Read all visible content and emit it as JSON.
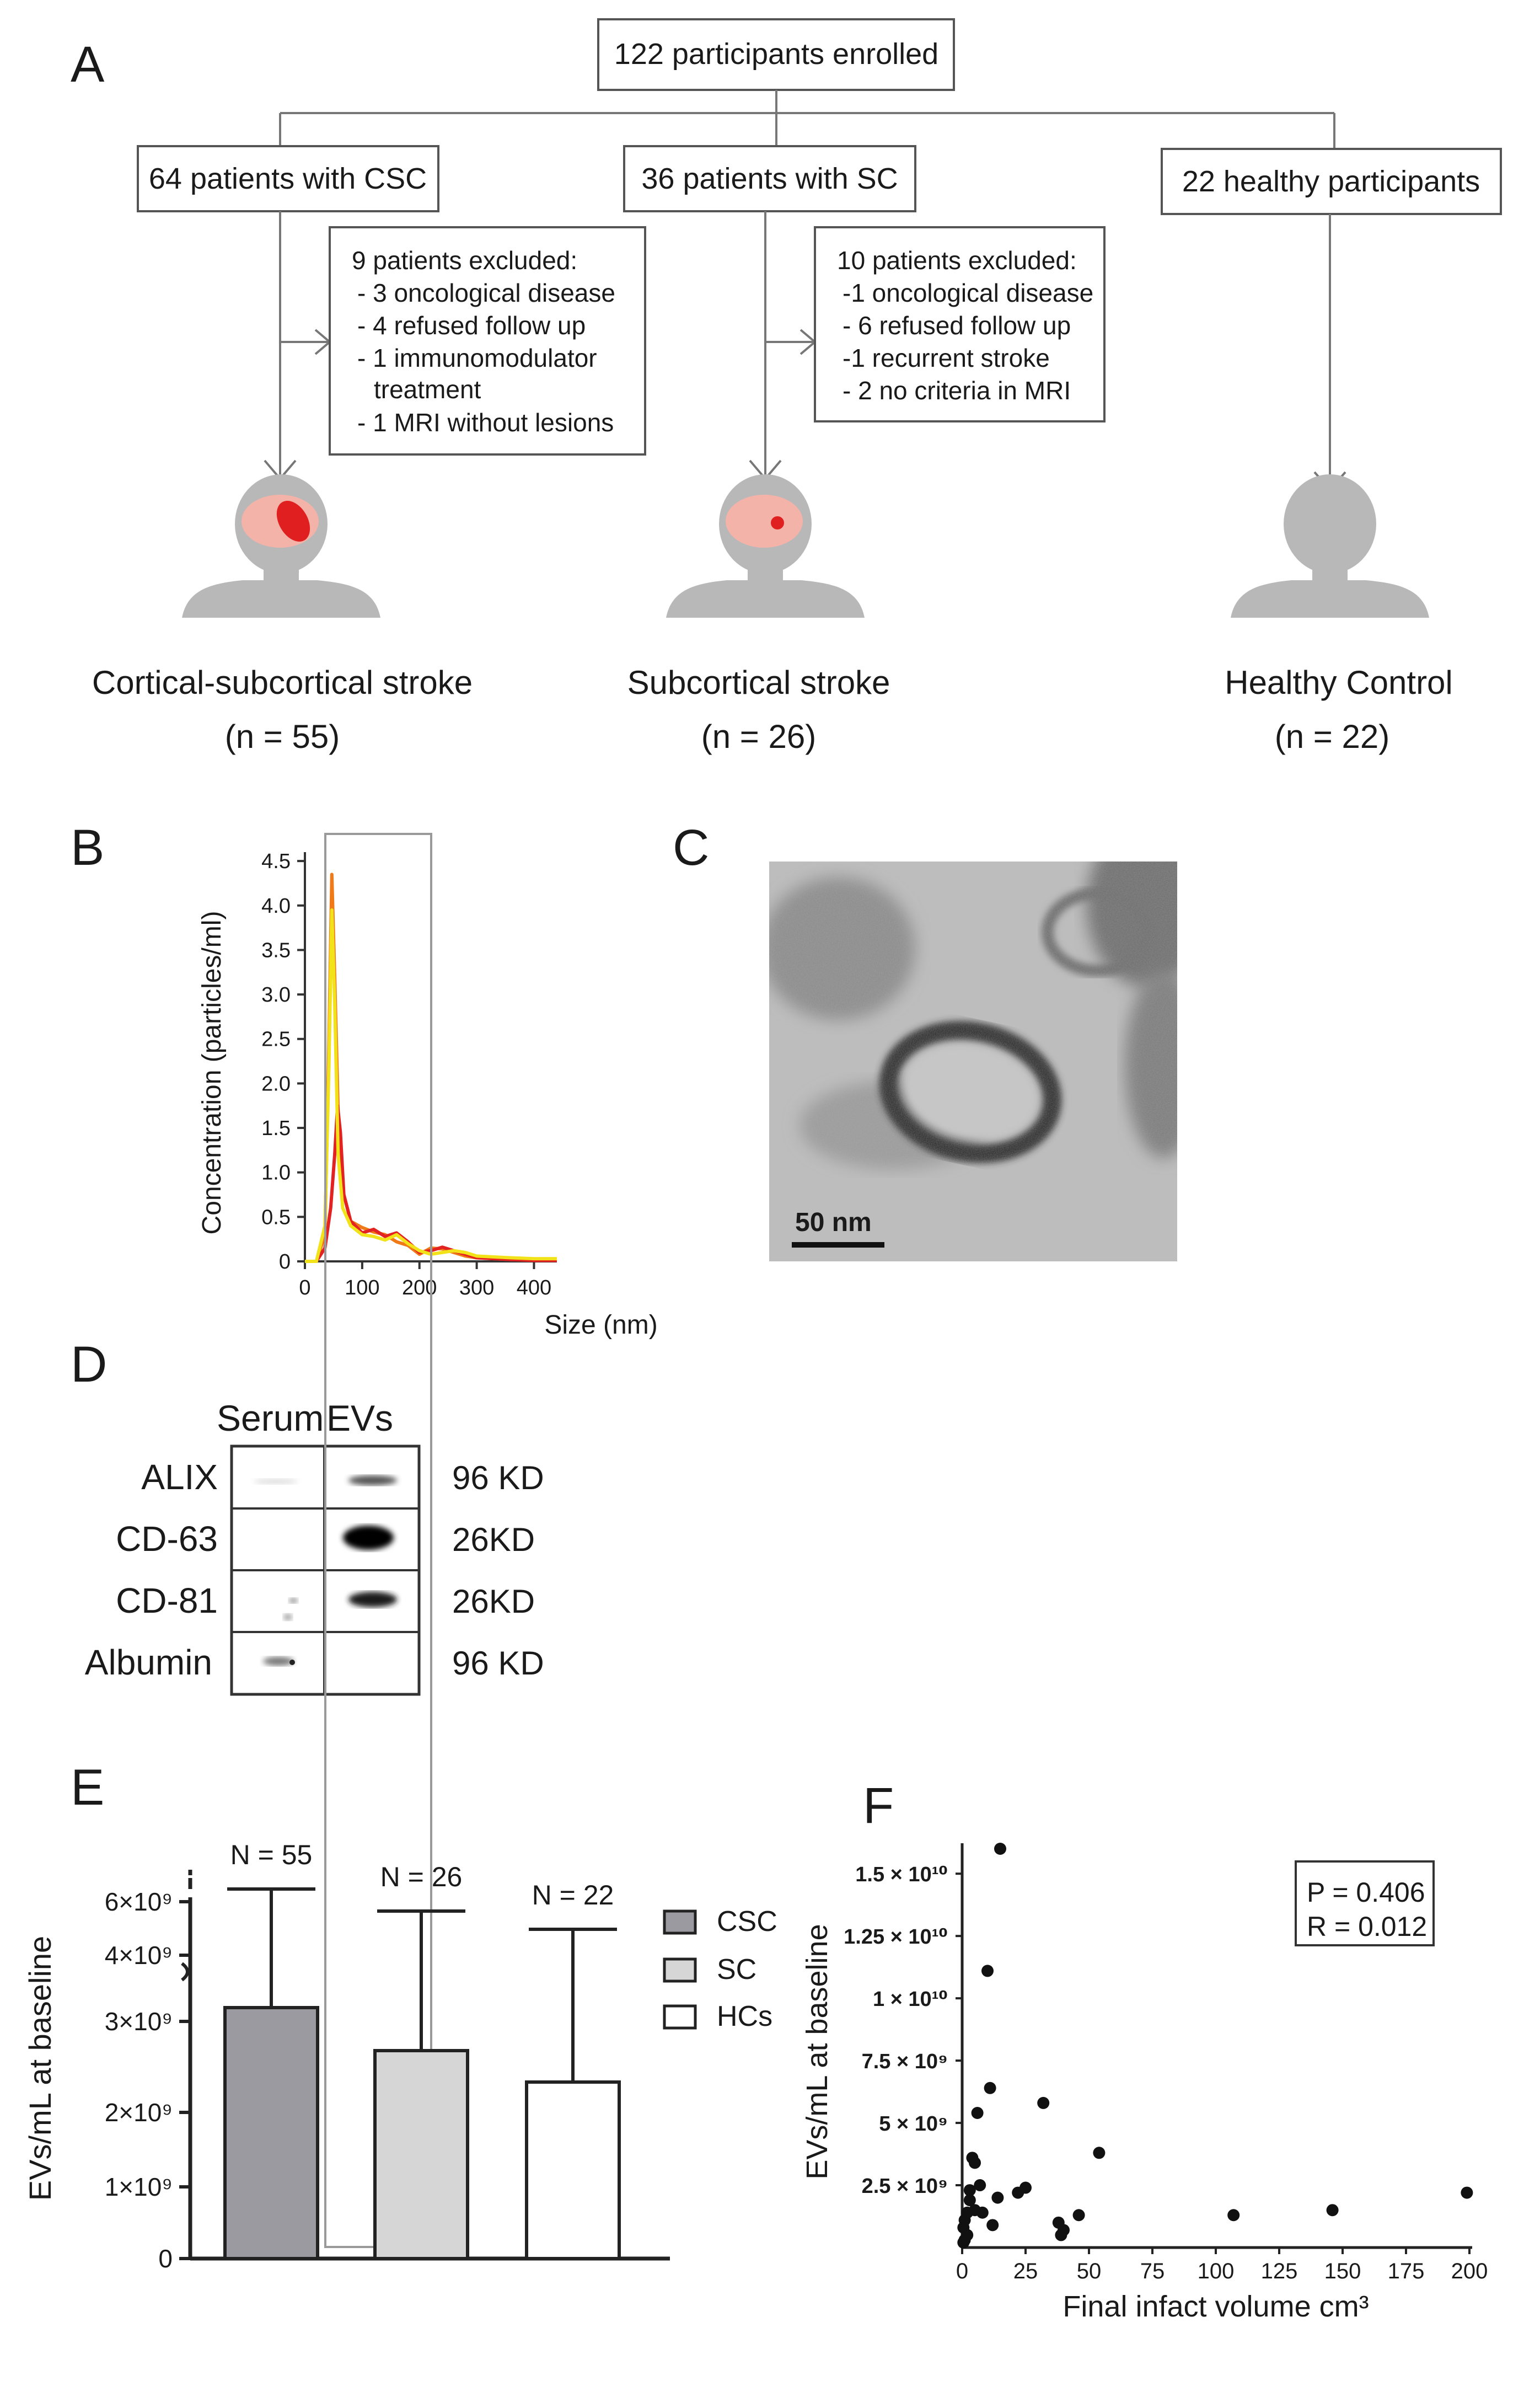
{
  "figure": {
    "panels": {
      "A": "A",
      "B": "B",
      "C": "C",
      "D": "D",
      "E": "E",
      "F": "F"
    }
  },
  "flowchart": {
    "enrolled": "122 participants enrolled",
    "groups": {
      "csc": "64 patients with CSC",
      "sc": "36 patients with SC",
      "hc": "22 healthy participants"
    },
    "csc_excluded": {
      "title": "9 patients excluded:",
      "lines": [
        "- 3 oncological disease",
        "- 4 refused follow up",
        "- 1 immunomodulator",
        "treatment",
        "- 1 MRI without lesions"
      ]
    },
    "sc_excluded": {
      "title": "10 patients excluded:",
      "lines": [
        "-1 oncological disease",
        "- 6 refused follow up",
        "-1 recurrent stroke",
        "- 2 no criteria in MRI"
      ]
    },
    "outcomes": [
      {
        "name": "Cortical-subcortical stroke",
        "n": "(n = 55)"
      },
      {
        "name": "Subcortical stroke",
        "n": "(n = 26)"
      },
      {
        "name": "Healthy Control",
        "n": "(n = 22)"
      }
    ]
  },
  "nta": {
    "ylabel": "Concentration (particles/ml)",
    "xlabel": "Size (nm)",
    "yticks": [
      "0",
      "0.5",
      "1.0",
      "1.5",
      "2.0",
      "2.5",
      "3.0",
      "3.5",
      "4.0",
      "4.5"
    ],
    "xticks": [
      "0",
      "100",
      "200",
      "300",
      "400"
    ]
  },
  "tem": {
    "scale_label": "50 nm"
  },
  "western": {
    "header_serum": "Serum",
    "header_evs": "EVs",
    "rows": [
      {
        "marker": "ALIX",
        "weight": "96 KD"
      },
      {
        "marker": "CD-63",
        "weight": "26KD"
      },
      {
        "marker": "CD-81",
        "weight": "26KD"
      },
      {
        "marker": "Albumin",
        "weight": "96 KD"
      }
    ]
  },
  "colors": {
    "csc_bar": "#9a9aa0",
    "sc_bar": "#d6d6d6",
    "hc_bar": "#ffffff",
    "nta_orange": "#f07a18",
    "nta_red": "#e32222",
    "nta_yellow": "#f2e21a",
    "stroke_lesion": "#e02020"
  },
  "chart_data": [
    {
      "type": "line",
      "panel": "B",
      "title": "",
      "xlabel": "Size (nm)",
      "ylabel": "Concentration (particles/ml)",
      "xlim": [
        0,
        440
      ],
      "ylim": [
        0,
        4.6
      ],
      "series": [
        {
          "name": "orange",
          "x": [
            0,
            20,
            35,
            42,
            47,
            52,
            58,
            66,
            80,
            100,
            120,
            140,
            160,
            180,
            200,
            220,
            240,
            260,
            280,
            300,
            330,
            360,
            400,
            440
          ],
          "y": [
            0,
            0,
            0.3,
            2.5,
            4.35,
            3.2,
            1.7,
            0.8,
            0.45,
            0.38,
            0.33,
            0.3,
            0.22,
            0.18,
            0.08,
            0.15,
            0.14,
            0.1,
            0.06,
            0.04,
            0.03,
            0.02,
            0.02,
            0.02
          ]
        },
        {
          "name": "red",
          "x": [
            0,
            20,
            35,
            45,
            52,
            57,
            62,
            68,
            80,
            100,
            120,
            140,
            160,
            180,
            200,
            220,
            240,
            260,
            280,
            300,
            330,
            360,
            400,
            440
          ],
          "y": [
            0,
            0,
            0.15,
            0.6,
            1.2,
            1.75,
            1.45,
            0.75,
            0.45,
            0.32,
            0.36,
            0.28,
            0.32,
            0.22,
            0.1,
            0.12,
            0.16,
            0.12,
            0.08,
            0.04,
            0.03,
            0.02,
            0.01,
            0.01
          ]
        },
        {
          "name": "yellow",
          "x": [
            0,
            20,
            35,
            42,
            47,
            52,
            58,
            66,
            80,
            100,
            120,
            140,
            160,
            180,
            200,
            220,
            240,
            260,
            280,
            300,
            330,
            360,
            400,
            440
          ],
          "y": [
            0,
            0,
            0.4,
            2.2,
            3.95,
            2.9,
            1.2,
            0.6,
            0.4,
            0.3,
            0.28,
            0.24,
            0.3,
            0.2,
            0.12,
            0.08,
            0.1,
            0.12,
            0.1,
            0.06,
            0.05,
            0.04,
            0.03,
            0.03
          ]
        }
      ]
    },
    {
      "type": "bar",
      "panel": "E",
      "title": "",
      "xlabel": "",
      "ylabel": "EVs/mL at baseline",
      "categories": [
        "CSC",
        "SC",
        "HCs"
      ],
      "values": [
        3150000000.0,
        2650000000.0,
        2250000000.0
      ],
      "sd_upper": [
        6300000000.0,
        5700000000.0,
        4900000000.0
      ],
      "n_labels": [
        "N = 55",
        "N = 26",
        "N = 22"
      ],
      "yticks": [
        "0",
        "1×10⁹",
        "2×10⁹",
        "3×10⁹",
        "4×10⁹",
        "6×10⁹"
      ],
      "ylim": [
        0,
        6500000000.0
      ],
      "axis_break": true,
      "legend": [
        "CSC",
        "SC",
        "HCs"
      ]
    },
    {
      "type": "scatter",
      "panel": "F",
      "title": "",
      "xlabel": "Final infact volume cm³",
      "ylabel": "EVs/mL at baseline",
      "xlim": [
        0,
        200
      ],
      "ylim": [
        0,
        16000000000.0
      ],
      "xticks": [
        "0",
        "25",
        "50",
        "75",
        "100",
        "125",
        "150",
        "175",
        "200"
      ],
      "yticks": [
        "2.5 × 10⁹",
        "5 × 10⁹",
        "7.5 × 10⁹",
        "1 × 10¹⁰",
        "1.25 × 10¹⁰",
        "1.5 × 10¹⁰"
      ],
      "stats": {
        "p": "P = 0.406",
        "r": "R = 0.012"
      },
      "x": [
        1,
        1,
        2,
        2,
        3,
        3,
        4,
        5,
        5,
        6,
        7,
        8,
        10,
        11,
        12,
        14,
        15,
        22,
        25,
        32,
        38,
        39,
        40,
        46,
        54,
        107,
        146,
        199,
        0.5,
        0.5
      ],
      "y": [
        300000000.0,
        1100000000.0,
        1400000000.0,
        500000000.0,
        1900000000.0,
        2300000000.0,
        3600000000.0,
        3400000000.0,
        1500000000.0,
        5400000000.0,
        2500000000.0,
        1400000000.0,
        11100000000.0,
        6400000000.0,
        900000000.0,
        2000000000.0,
        16000000000.0,
        2200000000.0,
        2400000000.0,
        5800000000.0,
        1000000000.0,
        500000000.0,
        700000000.0,
        1300000000.0,
        3800000000.0,
        1300000000.0,
        1500000000.0,
        2200000000.0,
        800000000.0,
        200000000.0
      ]
    }
  ]
}
